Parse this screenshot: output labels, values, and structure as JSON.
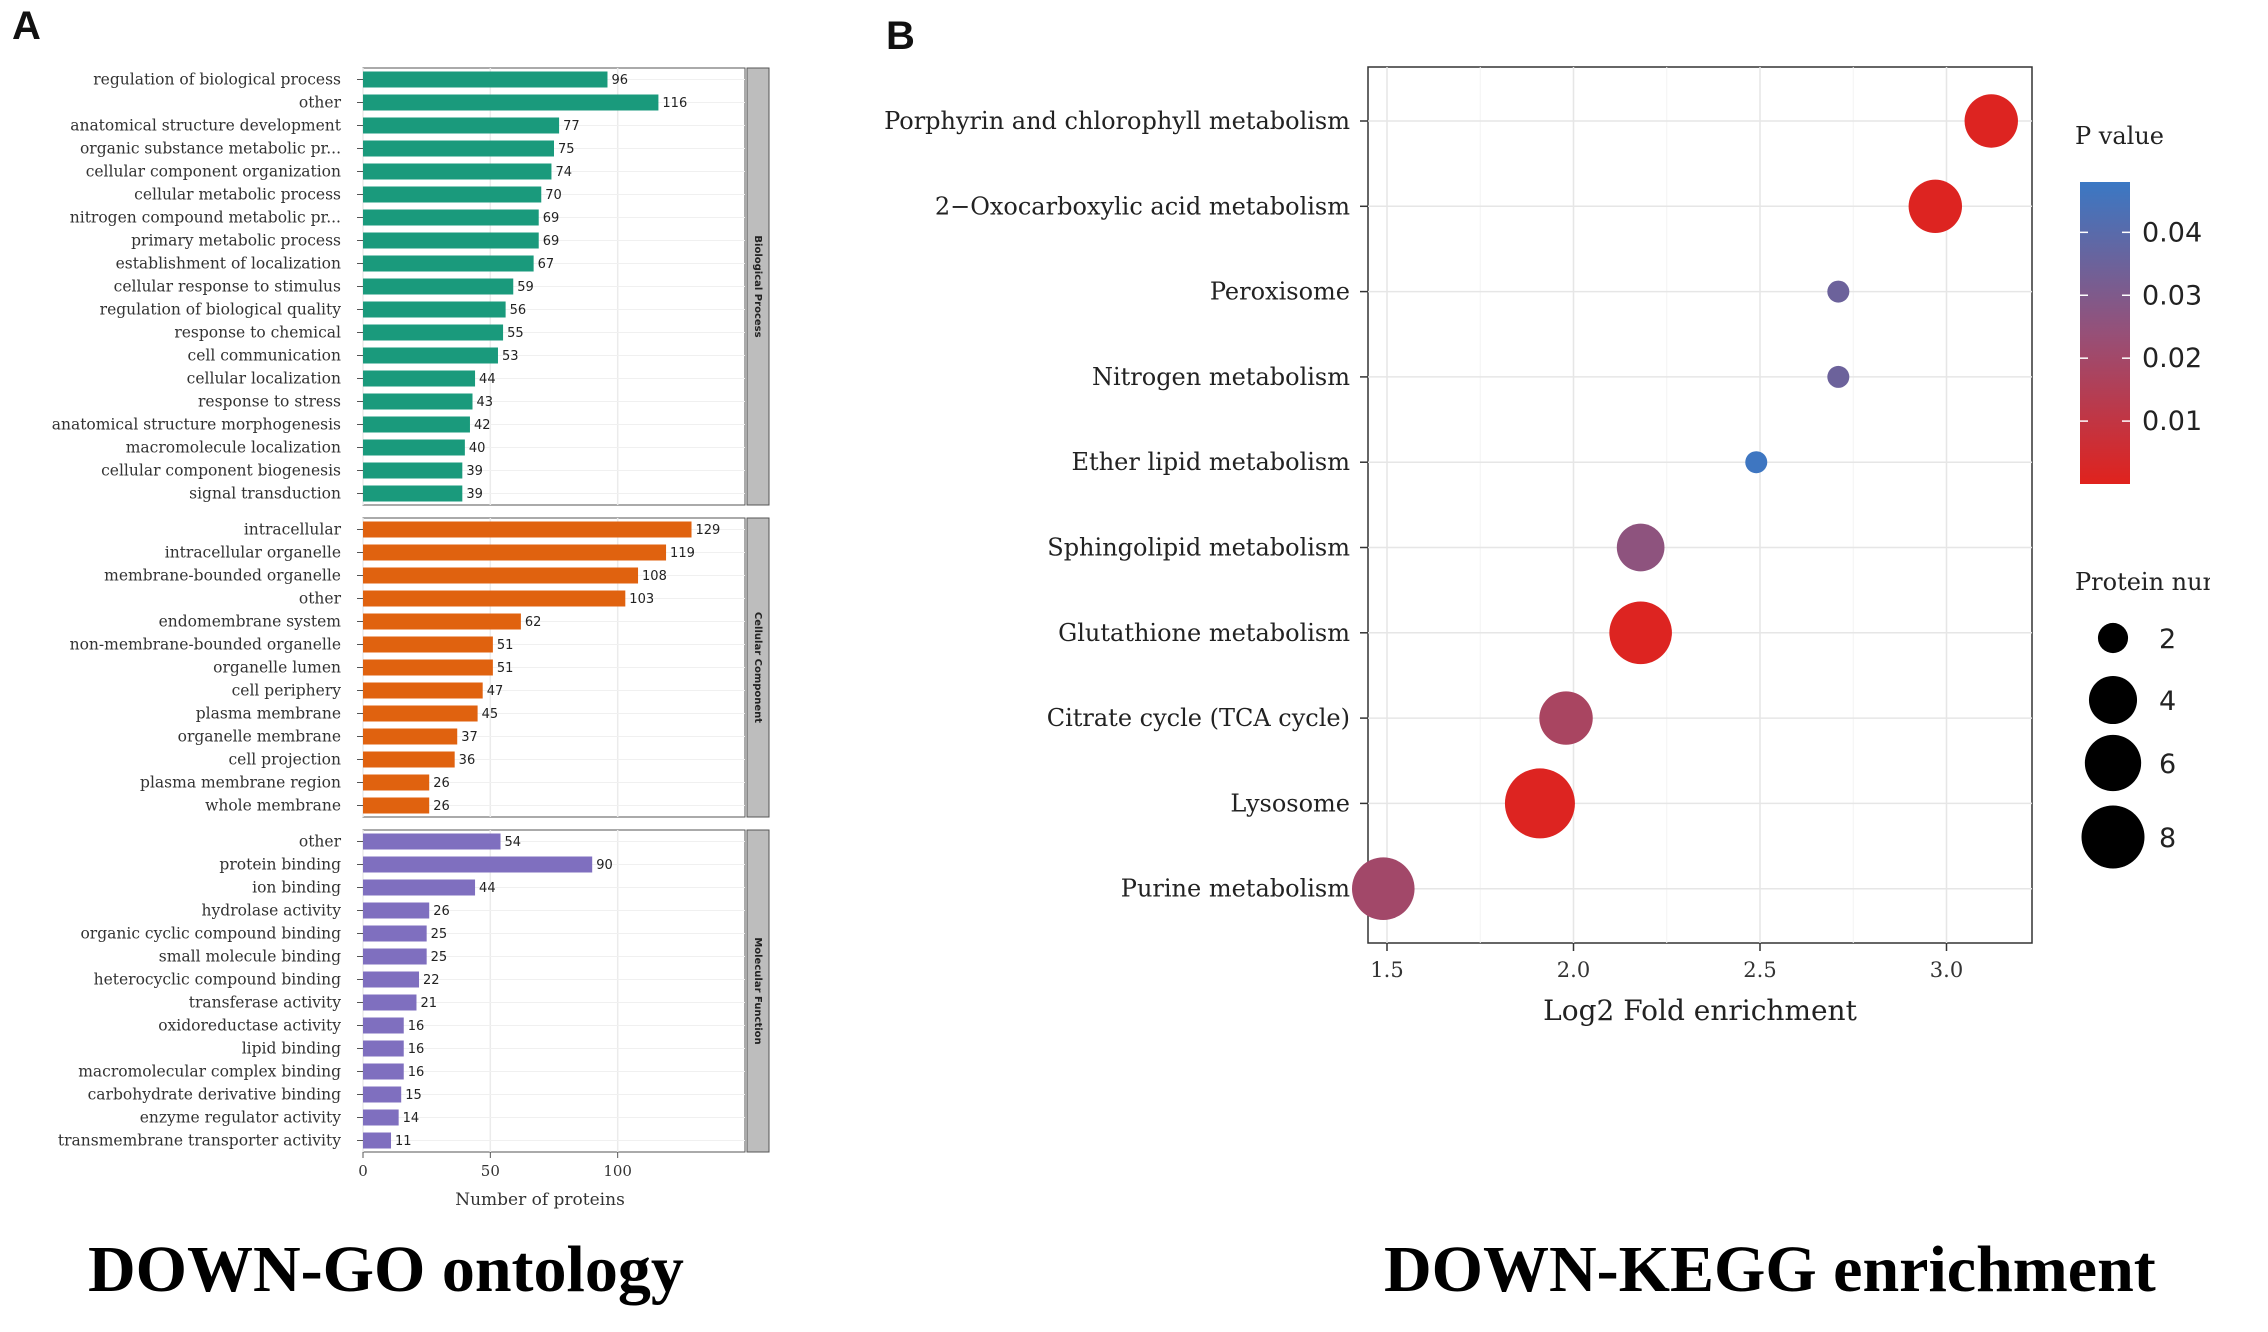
{
  "panels": {
    "a": {
      "letter": "A",
      "caption": "DOWN-GO ontology"
    },
    "b": {
      "letter": "B",
      "caption": "DOWN-KEGG enrichment"
    }
  },
  "chart_data": [
    {
      "type": "bar",
      "orientation": "horizontal",
      "title": "",
      "xlabel": "Number of proteins",
      "ylabel": "",
      "xlim": [
        0,
        150
      ],
      "xticks": [
        0,
        50,
        100
      ],
      "grid": true,
      "facets": [
        {
          "name": "Biological Process",
          "color": "#1a9a7c",
          "categories": [
            "regulation of biological process",
            "other",
            "anatomical structure development",
            "organic substance metabolic pr...",
            "cellular component organization",
            "cellular metabolic process",
            "nitrogen compound metabolic pr...",
            "primary metabolic process",
            "establishment of localization",
            "cellular response to stimulus",
            "regulation of biological quality",
            "response to chemical",
            "cell communication",
            "cellular localization",
            "response to stress",
            "anatomical structure morphogenesis",
            "macromolecule localization",
            "cellular component biogenesis",
            "signal transduction"
          ],
          "values": [
            96,
            116,
            77,
            75,
            74,
            70,
            69,
            69,
            67,
            59,
            56,
            55,
            53,
            44,
            43,
            42,
            40,
            39,
            39
          ]
        },
        {
          "name": "Cellular Component",
          "color": "#e0620f",
          "categories": [
            "intracellular",
            "intracellular organelle",
            "membrane-bounded organelle",
            "other",
            "endomembrane system",
            "non-membrane-bounded organelle",
            "organelle lumen",
            "cell periphery",
            "plasma membrane",
            "organelle membrane",
            "cell projection",
            "plasma membrane region",
            "whole membrane"
          ],
          "values": [
            129,
            119,
            108,
            103,
            62,
            51,
            51,
            47,
            45,
            37,
            36,
            26,
            26
          ]
        },
        {
          "name": "Molecular Function",
          "color": "#7f6fbf",
          "categories": [
            "other",
            "protein binding",
            "ion binding",
            "hydrolase activity",
            "organic cyclic compound binding",
            "small molecule binding",
            "heterocyclic compound binding",
            "transferase activity",
            "oxidoreductase activity",
            "lipid binding",
            "macromolecular complex binding",
            "carbohydrate derivative binding",
            "enzyme regulator activity",
            "transmembrane transporter activity"
          ],
          "values": [
            54,
            90,
            44,
            26,
            25,
            25,
            22,
            21,
            16,
            16,
            16,
            15,
            14,
            11
          ]
        }
      ]
    },
    {
      "type": "scatter",
      "title": "",
      "xlabel": "Log2 Fold enrichment",
      "ylabel": "",
      "xlim": [
        1.4,
        3.2
      ],
      "xticks": [
        1.5,
        2.0,
        2.5,
        3.0
      ],
      "xtick_labels": [
        "1.5",
        "2.0",
        "2.5",
        "3.0"
      ],
      "grid": true,
      "categories": [
        "Porphyrin and chlorophyll metabolism",
        "2−Oxocarboxylic acid metabolism",
        "Peroxisome",
        "Nitrogen metabolism",
        "Ether lipid metabolism",
        "Sphingolipid metabolism",
        "Glutathione metabolism",
        "Citrate cycle (TCA cycle)",
        "Lysosome",
        "Purine metabolism"
      ],
      "x": [
        3.12,
        2.97,
        2.71,
        2.71,
        2.49,
        2.18,
        2.18,
        1.98,
        1.91,
        1.49
      ],
      "protein_number": [
        4,
        4,
        1,
        1,
        1,
        3,
        6,
        4,
        8,
        6
      ],
      "p_value": [
        0.001,
        0.001,
        0.035,
        0.035,
        0.047,
        0.026,
        0.001,
        0.018,
        0.001,
        0.02
      ],
      "color_legend": {
        "title": "P  value",
        "ticks": [
          0.04,
          0.03,
          0.02,
          0.01
        ],
        "tick_labels": [
          "0.04",
          "0.03",
          "0.02",
          "0.01"
        ],
        "range": [
          0.0,
          0.048
        ],
        "low_color": "#e0221d",
        "high_color": "#3a78c4"
      },
      "size_legend": {
        "title": "Protein number",
        "values": [
          2,
          4,
          6,
          8
        ],
        "labels": [
          "2",
          "4",
          "6",
          "8"
        ]
      }
    }
  ]
}
